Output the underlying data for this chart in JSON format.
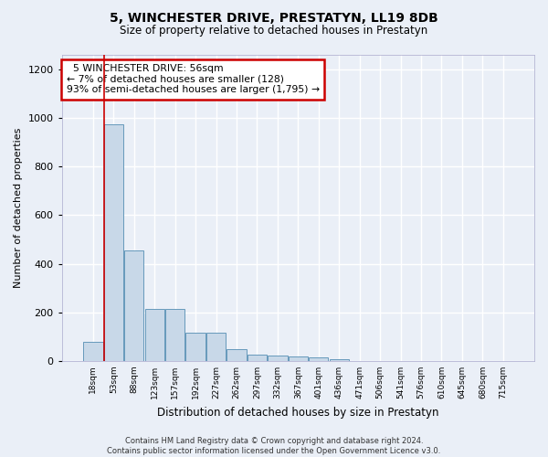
{
  "title": "5, WINCHESTER DRIVE, PRESTATYN, LL19 8DB",
  "subtitle": "Size of property relative to detached houses in Prestatyn",
  "xlabel": "Distribution of detached houses by size in Prestatyn",
  "ylabel": "Number of detached properties",
  "footer_line1": "Contains HM Land Registry data © Crown copyright and database right 2024.",
  "footer_line2": "Contains public sector information licensed under the Open Government Licence v3.0.",
  "bar_labels": [
    "18sqm",
    "53sqm",
    "88sqm",
    "123sqm",
    "157sqm",
    "192sqm",
    "227sqm",
    "262sqm",
    "297sqm",
    "332sqm",
    "367sqm",
    "401sqm",
    "436sqm",
    "471sqm",
    "506sqm",
    "541sqm",
    "576sqm",
    "610sqm",
    "645sqm",
    "680sqm",
    "715sqm"
  ],
  "bar_values": [
    80,
    975,
    455,
    215,
    215,
    118,
    115,
    50,
    25,
    22,
    20,
    15,
    8,
    0,
    0,
    0,
    0,
    0,
    0,
    0,
    0
  ],
  "bar_color": "#c8d8e8",
  "bar_edge_color": "#6699bb",
  "bg_color": "#eaeff7",
  "grid_color": "#ffffff",
  "annotation_text": "  5 WINCHESTER DRIVE: 56sqm  \n← 7% of detached houses are smaller (128)\n93% of semi-detached houses are larger (1,795) →",
  "annotation_box_color": "#ffffff",
  "annotation_box_edge": "#cc0000",
  "red_line_x": 0.55,
  "ylim": [
    0,
    1260
  ],
  "yticks": [
    0,
    200,
    400,
    600,
    800,
    1000,
    1200
  ]
}
